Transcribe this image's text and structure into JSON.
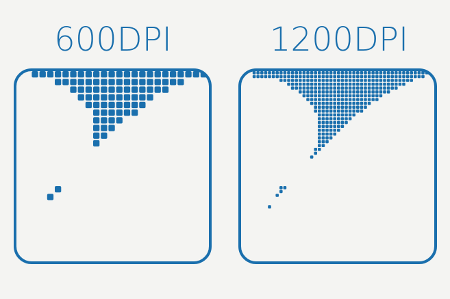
{
  "panels": [
    {
      "label": "600DPI"
    },
    {
      "label": "1200DPI"
    }
  ],
  "colors": {
    "accent": "#1a6fad",
    "background": "#f4f4f2"
  }
}
